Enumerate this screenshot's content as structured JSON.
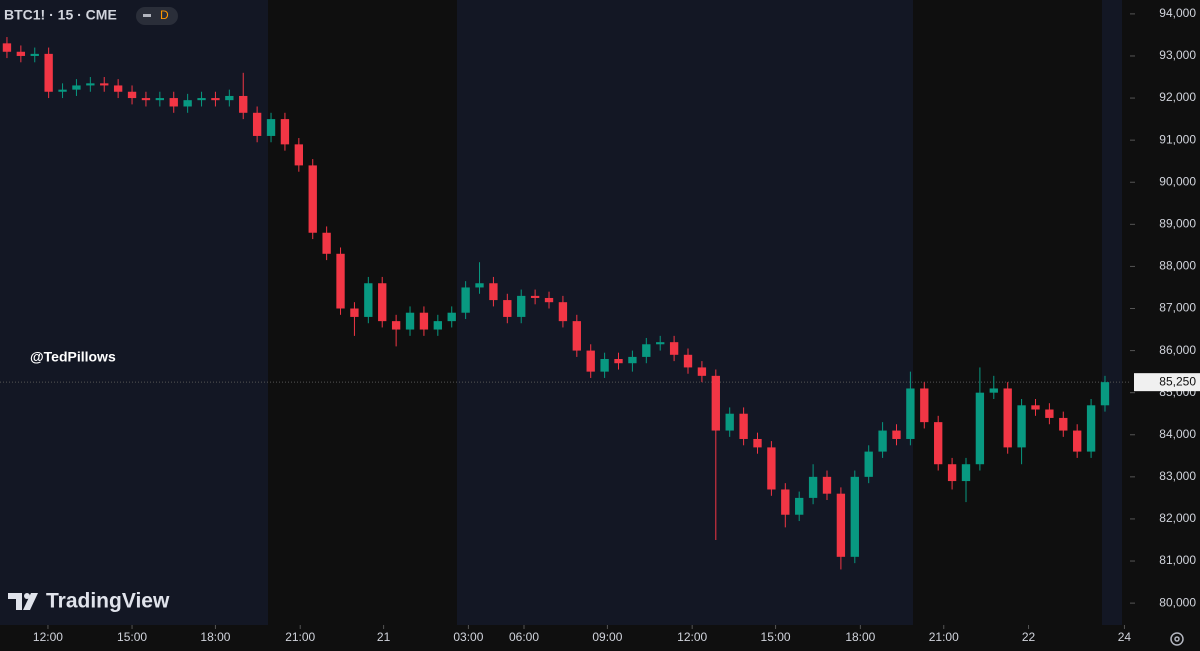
{
  "chart_data": {
    "type": "candlestick",
    "title": "BTC1! · 15 · CME",
    "badge": "D",
    "watermark": "@TedPillows",
    "brand": "TradingView",
    "up_color": "#089981",
    "down_color": "#f23645",
    "open": [
      93300,
      93100,
      93000,
      93050,
      92150,
      92200,
      92300,
      92350,
      92300,
      92150,
      92000,
      91950,
      92000,
      91800,
      91950,
      92000,
      91950,
      92050,
      91650,
      91100,
      91500,
      90900,
      90400,
      88800,
      88300,
      87000,
      86800,
      87600,
      86700,
      86500,
      86900,
      86500,
      86700,
      86900,
      87500,
      87600,
      87200,
      86800,
      87300,
      87250,
      87150,
      86700,
      86000,
      85500,
      85800,
      85700,
      85850,
      86150,
      86200,
      85900,
      85600,
      85400,
      84100,
      84500,
      83900,
      83700,
      82700,
      82100,
      82500,
      83000,
      82600,
      81100,
      83000,
      83600,
      84100,
      83900,
      85100,
      84300,
      83300,
      82900,
      83300,
      85000,
      85100,
      83700,
      84700,
      84600,
      84400,
      84100,
      83600,
      84700
    ],
    "high": [
      93450,
      93250,
      93200,
      93200,
      92350,
      92450,
      92500,
      92500,
      92450,
      92300,
      92150,
      92150,
      92150,
      92100,
      92150,
      92150,
      92200,
      92600,
      91800,
      91650,
      91650,
      91050,
      90550,
      88950,
      88450,
      87150,
      87750,
      87750,
      86850,
      87050,
      87050,
      86850,
      87050,
      87650,
      88100,
      87750,
      87350,
      87450,
      87450,
      87400,
      87300,
      86850,
      86150,
      85950,
      85950,
      86000,
      86300,
      86350,
      86350,
      86050,
      85750,
      85550,
      84650,
      84650,
      84050,
      83850,
      82850,
      82650,
      83300,
      83150,
      82750,
      83150,
      83750,
      84300,
      84250,
      85500,
      85250,
      84450,
      83450,
      83450,
      85600,
      85400,
      85250,
      84850,
      84850,
      84750,
      84550,
      84250,
      84850,
      85400
    ],
    "low": [
      92950,
      92850,
      92850,
      92000,
      92000,
      92050,
      92150,
      92150,
      92000,
      91850,
      91800,
      91800,
      91650,
      91650,
      91800,
      91800,
      91800,
      91500,
      90950,
      90950,
      90750,
      90250,
      88650,
      88150,
      86850,
      86350,
      86650,
      86550,
      86100,
      86350,
      86350,
      86350,
      86550,
      86750,
      87350,
      87050,
      86650,
      86650,
      87100,
      87000,
      86550,
      85850,
      85350,
      85350,
      85550,
      85500,
      85700,
      86000,
      85750,
      85450,
      85250,
      81500,
      83950,
      83750,
      83550,
      82550,
      81800,
      81950,
      82350,
      82450,
      80800,
      80950,
      82850,
      83450,
      83750,
      83750,
      84150,
      83150,
      82700,
      82400,
      83150,
      84850,
      83550,
      83300,
      84450,
      84250,
      83950,
      83450,
      83450,
      84550
    ],
    "close": [
      93100,
      93000,
      93050,
      92150,
      92200,
      92300,
      92350,
      92300,
      92150,
      92000,
      91950,
      92000,
      91800,
      91950,
      92000,
      91950,
      92050,
      91650,
      91100,
      91500,
      90900,
      90400,
      88800,
      88300,
      87000,
      86800,
      87600,
      86700,
      86500,
      86900,
      86500,
      86700,
      86900,
      87500,
      87600,
      87200,
      86800,
      87300,
      87250,
      87150,
      86700,
      86000,
      85500,
      85800,
      85700,
      85850,
      86150,
      86200,
      85900,
      85600,
      85400,
      84100,
      84500,
      83900,
      83700,
      82700,
      82100,
      82500,
      83000,
      82600,
      81100,
      83000,
      83600,
      84100,
      83900,
      85100,
      84300,
      83300,
      82900,
      83300,
      85000,
      85100,
      83700,
      84700,
      84600,
      84400,
      84100,
      83600,
      84700,
      85250
    ],
    "last_price": {
      "value": 85250,
      "label": "85,250"
    },
    "ylim": [
      79480,
      94330
    ],
    "yticks": [
      {
        "value": 80000,
        "label": "80,000"
      },
      {
        "value": 81000,
        "label": "81,000"
      },
      {
        "value": 82000,
        "label": "82,000"
      },
      {
        "value": 83000,
        "label": "83,000"
      },
      {
        "value": 84000,
        "label": "84,000"
      },
      {
        "value": 85000,
        "label": "85,000"
      },
      {
        "value": 86000,
        "label": "86,000"
      },
      {
        "value": 87000,
        "label": "87,000"
      },
      {
        "value": 88000,
        "label": "88,000"
      },
      {
        "value": 89000,
        "label": "89,000"
      },
      {
        "value": 90000,
        "label": "90,000"
      },
      {
        "value": 91000,
        "label": "91,000"
      },
      {
        "value": 92000,
        "label": "92,000"
      },
      {
        "value": 93000,
        "label": "93,000"
      },
      {
        "value": 94000,
        "label": "94,000"
      }
    ],
    "xlim": [
      -0.5,
      80.8
    ],
    "xticks": [
      {
        "value": 2.95,
        "label": "12:00"
      },
      {
        "value": 9.0,
        "label": "15:00"
      },
      {
        "value": 15.0,
        "label": "18:00"
      },
      {
        "value": 21.1,
        "label": "21:00"
      },
      {
        "value": 27.1,
        "label": "21"
      },
      {
        "value": 33.2,
        "label": "03:00"
      },
      {
        "value": 37.2,
        "label": "06:00"
      },
      {
        "value": 43.2,
        "label": "09:00"
      },
      {
        "value": 49.3,
        "label": "12:00"
      },
      {
        "value": 55.3,
        "label": "15:00"
      },
      {
        "value": 61.4,
        "label": "18:00"
      },
      {
        "value": 67.4,
        "label": "21:00"
      },
      {
        "value": 73.5,
        "label": "22"
      },
      {
        "value": 80.4,
        "label": "24"
      }
    ]
  }
}
